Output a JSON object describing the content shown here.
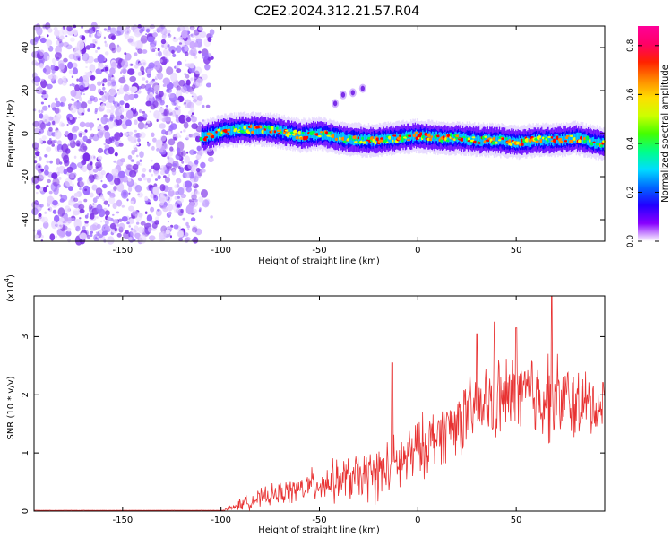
{
  "title": "C2E2.2024.312.21.57.R04",
  "chart_data": [
    {
      "type": "heatmap",
      "name": "spectrogram",
      "xlabel": "Height of straight line (km)",
      "ylabel": "Frequency (Hz)",
      "xlim": [
        -195,
        95
      ],
      "ylim": [
        -50,
        50
      ],
      "xticks": [
        -150,
        -100,
        -50,
        0,
        50
      ],
      "yticks": [
        -40,
        -20,
        0,
        20,
        40
      ],
      "noise_region_x": [
        -195,
        -110
      ],
      "signal_band": {
        "x": [
          -110,
          -100,
          -90,
          -80,
          -70,
          -60,
          -50,
          -40,
          -30,
          -20,
          -10,
          0,
          10,
          20,
          30,
          40,
          50,
          60,
          70,
          80,
          90,
          95
        ],
        "freq": [
          -2,
          1,
          2,
          2,
          1,
          -1,
          0,
          -2,
          -3,
          -3,
          -2,
          -1,
          -2,
          -2,
          -3,
          -3,
          -4,
          -3,
          -3,
          -2,
          -4,
          -5
        ]
      },
      "echo_points": [
        [
          -42,
          14
        ],
        [
          -38,
          18
        ],
        [
          -33,
          19
        ],
        [
          -28,
          21
        ]
      ],
      "colorbar": {
        "label": "Normalized spectral amplitude",
        "range": [
          0.0,
          0.88
        ],
        "ticks": [
          0.0,
          0.2,
          0.4,
          0.6,
          0.8
        ],
        "tick_labels": [
          "0.0",
          "0.2",
          "0.4",
          "0.6",
          "0.8"
        ]
      }
    },
    {
      "type": "line",
      "name": "snr",
      "xlabel": "Height of straight line (km)",
      "ylabel": "SNR (10 * v/v)",
      "scale_label_base": "(x10",
      "scale_label_exp": "4",
      "scale_label_close": ")",
      "xlim": [
        -195,
        95
      ],
      "ylim": [
        0,
        3.7
      ],
      "xticks": [
        -150,
        -100,
        -50,
        0,
        50
      ],
      "yticks": [
        0,
        1,
        2,
        3
      ],
      "line_color": "#e83232",
      "envelope": {
        "x": [
          -195,
          -100,
          -95,
          -90,
          -80,
          -70,
          -60,
          -50,
          -40,
          -30,
          -20,
          -10,
          0,
          10,
          20,
          30,
          40,
          50,
          60,
          70,
          80,
          90,
          95
        ],
        "mean": [
          0.01,
          0.01,
          0.05,
          0.12,
          0.22,
          0.3,
          0.38,
          0.48,
          0.52,
          0.58,
          0.65,
          0.8,
          1.05,
          1.3,
          1.55,
          1.75,
          1.9,
          1.95,
          2.0,
          1.95,
          1.85,
          1.8,
          1.8
        ],
        "spread": [
          0.005,
          0.005,
          0.05,
          0.1,
          0.15,
          0.18,
          0.22,
          0.3,
          0.35,
          0.4,
          0.45,
          0.5,
          0.5,
          0.5,
          0.55,
          0.6,
          0.65,
          0.7,
          0.75,
          0.7,
          0.6,
          0.5,
          0.5
        ]
      },
      "peaks": [
        [
          -13,
          2.55
        ],
        [
          30,
          3.05
        ],
        [
          39,
          3.25
        ],
        [
          50,
          3.15
        ],
        [
          68,
          3.7
        ]
      ]
    }
  ],
  "colors": {
    "noise": [
      "#e8d8ff",
      "#c9a6ff",
      "#a070ff",
      "#7a2ee8"
    ],
    "signal_ramp": [
      "#ffffff",
      "#6600ff",
      "#0000ff",
      "#00d8ff",
      "#00ff40",
      "#f0ff00",
      "#ff8800",
      "#ff0000",
      "#ff00aa"
    ]
  }
}
